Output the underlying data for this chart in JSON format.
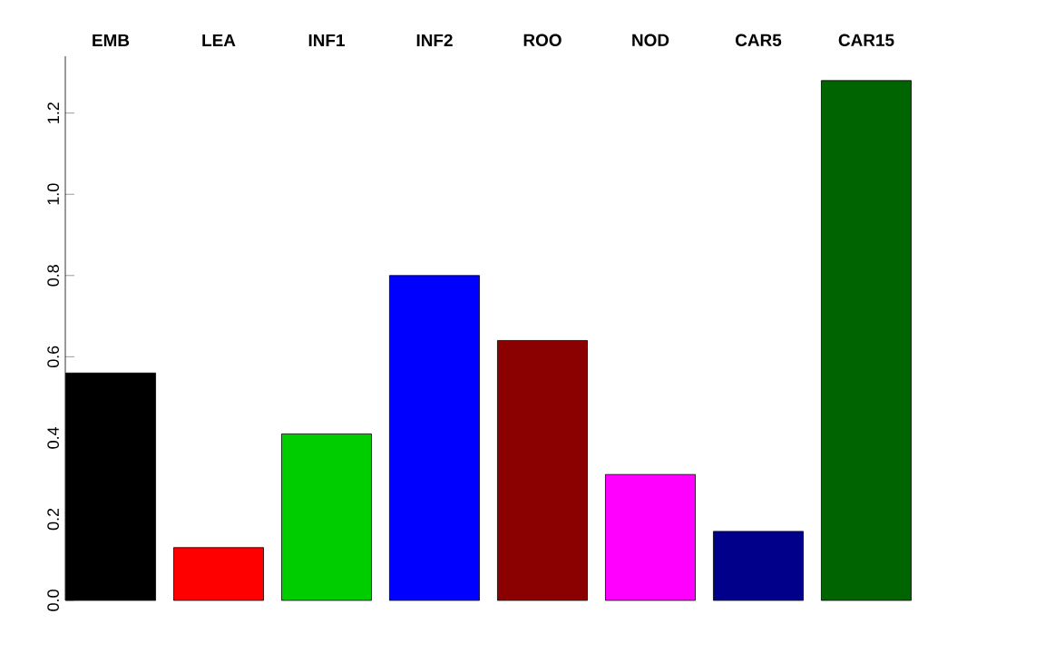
{
  "chart_data": {
    "type": "bar",
    "categories": [
      "EMB",
      "LEA",
      "INF1",
      "INF2",
      "ROO",
      "NOD",
      "CAR5",
      "CAR15"
    ],
    "values": [
      0.56,
      0.13,
      0.41,
      0.8,
      0.64,
      0.31,
      0.17,
      1.28
    ],
    "colors": [
      "#000000",
      "#ff0000",
      "#00cd00",
      "#0000ff",
      "#8b0000",
      "#ff00ff",
      "#00008b",
      "#006400"
    ],
    "ylim": [
      0,
      1.34
    ],
    "yticks": [
      {
        "value": 0,
        "label": "0.0"
      },
      {
        "value": 0.2,
        "label": "0.2"
      },
      {
        "value": 0.4,
        "label": "0.4"
      },
      {
        "value": 0.6,
        "label": "0.6"
      },
      {
        "value": 0.8,
        "label": "0.8"
      },
      {
        "value": 1.0,
        "label": "1.0"
      },
      {
        "value": 1.2,
        "label": "1.2"
      }
    ]
  }
}
